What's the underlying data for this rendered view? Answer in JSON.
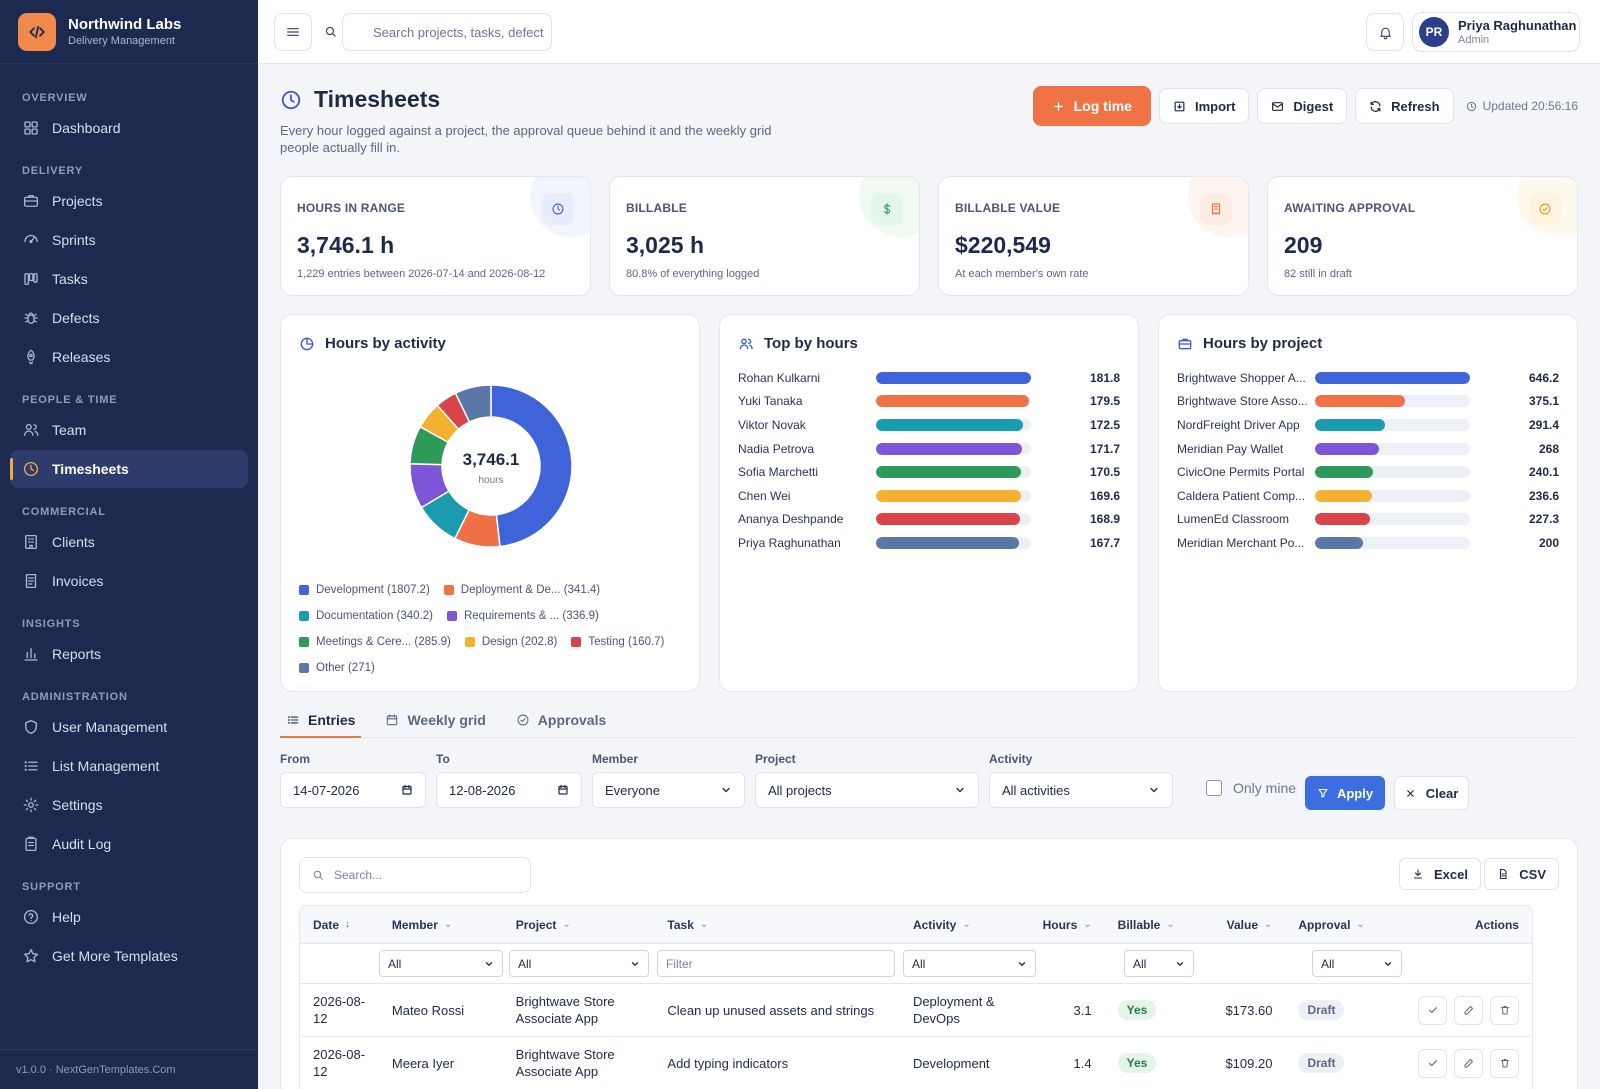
{
  "brand": {
    "name": "Northwind Labs",
    "subtitle": "Delivery Management"
  },
  "nav": {
    "sections": [
      {
        "title": "OVERVIEW",
        "items": [
          {
            "label": "Dashboard",
            "icon": "grid-icon"
          }
        ]
      },
      {
        "title": "DELIVERY",
        "items": [
          {
            "label": "Projects",
            "icon": "briefcase-icon"
          },
          {
            "label": "Sprints",
            "icon": "sprint-icon"
          },
          {
            "label": "Tasks",
            "icon": "kanban-icon"
          },
          {
            "label": "Defects",
            "icon": "bug-icon"
          },
          {
            "label": "Releases",
            "icon": "rocket-icon"
          }
        ]
      },
      {
        "title": "PEOPLE & TIME",
        "items": [
          {
            "label": "Team",
            "icon": "users-icon"
          },
          {
            "label": "Timesheets",
            "icon": "clock-icon",
            "active": true
          }
        ]
      },
      {
        "title": "COMMERCIAL",
        "items": [
          {
            "label": "Clients",
            "icon": "building-icon"
          },
          {
            "label": "Invoices",
            "icon": "invoice-icon"
          }
        ]
      },
      {
        "title": "INSIGHTS",
        "items": [
          {
            "label": "Reports",
            "icon": "bar-chart-icon"
          }
        ]
      },
      {
        "title": "ADMINISTRATION",
        "items": [
          {
            "label": "User Management",
            "icon": "shield-icon"
          },
          {
            "label": "List Management",
            "icon": "list-icon"
          },
          {
            "label": "Settings",
            "icon": "gear-icon"
          },
          {
            "label": "Audit Log",
            "icon": "clipboard-icon"
          }
        ]
      },
      {
        "title": "SUPPORT",
        "items": [
          {
            "label": "Help",
            "icon": "help-icon"
          },
          {
            "label": "Get More Templates",
            "icon": "star-icon"
          }
        ]
      }
    ],
    "footer": "v1.0.0 · NextGenTemplates.Com"
  },
  "topbar": {
    "search_placeholder": "Search projects, tasks, defect",
    "user": {
      "initials": "PR",
      "name": "Priya Raghunathan",
      "role": "Admin"
    }
  },
  "page": {
    "title": "Timesheets",
    "subtitle": "Every hour logged against a project, the approval queue behind it and the weekly grid people actually fill in.",
    "actions": {
      "log_time": "Log time",
      "import": "Import",
      "digest": "Digest",
      "refresh": "Refresh"
    },
    "updated": "Updated 20:56:16"
  },
  "kpis": [
    {
      "label": "HOURS IN RANGE",
      "value": "3,746.1 h",
      "note": "1,229 entries between 2026-07-14 and 2026-08-12",
      "icon": "clock-icon",
      "color": "#3b5bcf",
      "bg": "#e8edfb"
    },
    {
      "label": "BILLABLE",
      "value": "3,025 h",
      "note": "80.8% of everything logged",
      "icon": "dollar-icon",
      "color": "#2b9a5a",
      "bg": "#e4f5ea"
    },
    {
      "label": "BILLABLE VALUE",
      "value": "$220,549",
      "note": "At each member's own rate",
      "icon": "receipt-icon",
      "color": "#e0703e",
      "bg": "#fdece3"
    },
    {
      "label": "AWAITING APPROVAL",
      "value": "209",
      "note": "82 still in draft",
      "icon": "check-circle-icon",
      "color": "#d79a1a",
      "bg": "#fdf4df"
    }
  ],
  "activity_panel": {
    "title": "Hours by activity",
    "center_value": "3,746.1",
    "center_unit": "hours"
  },
  "top_panel": {
    "title": "Top by hours"
  },
  "project_panel": {
    "title": "Hours by project"
  },
  "chart_data": [
    {
      "type": "pie",
      "title": "Hours by activity",
      "donut": true,
      "slices": [
        {
          "label": "Development",
          "legend": "Development (1807.2)",
          "value": 1807.2,
          "color": "#3f63d9"
        },
        {
          "label": "Deployment & DevOps",
          "legend": "Deployment & De... (341.4)",
          "value": 341.4,
          "color": "#ef7146"
        },
        {
          "label": "Documentation",
          "legend": "Documentation (340.2)",
          "value": 340.2,
          "color": "#1a9bb0"
        },
        {
          "label": "Requirements",
          "legend": "Requirements & ... (336.9)",
          "value": 336.9,
          "color": "#7d55d6"
        },
        {
          "label": "Meetings & Ceremonies",
          "legend": "Meetings & Cere... (285.9)",
          "value": 285.9,
          "color": "#2e9a5a"
        },
        {
          "label": "Design",
          "legend": "Design (202.8)",
          "value": 202.8,
          "color": "#f3b12f"
        },
        {
          "label": "Testing",
          "legend": "Testing (160.7)",
          "value": 160.7,
          "color": "#d9444b"
        },
        {
          "label": "Other",
          "legend": "Other (271)",
          "value": 271,
          "color": "#5b77a8"
        }
      ]
    },
    {
      "type": "bar",
      "title": "Top by hours",
      "orientation": "horizontal",
      "xlim": [
        0,
        181.8
      ],
      "items": [
        {
          "label": "Rohan Kulkarni",
          "value": 181.8,
          "display": "181.8",
          "color": "#3f63d9"
        },
        {
          "label": "Yuki Tanaka",
          "value": 179.5,
          "display": "179.5",
          "color": "#ef7146"
        },
        {
          "label": "Viktor Novak",
          "value": 172.5,
          "display": "172.5",
          "color": "#1a9bb0"
        },
        {
          "label": "Nadia Petrova",
          "value": 171.7,
          "display": "171.7",
          "color": "#7d55d6"
        },
        {
          "label": "Sofia Marchetti",
          "value": 170.5,
          "display": "170.5",
          "color": "#2e9a5a"
        },
        {
          "label": "Chen Wei",
          "value": 169.6,
          "display": "169.6",
          "color": "#f3b12f"
        },
        {
          "label": "Ananya Deshpande",
          "value": 168.9,
          "display": "168.9",
          "color": "#d9444b"
        },
        {
          "label": "Priya Raghunathan",
          "value": 167.7,
          "display": "167.7",
          "color": "#5b77a8"
        }
      ]
    },
    {
      "type": "bar",
      "title": "Hours by project",
      "orientation": "horizontal",
      "xlim": [
        0,
        646.2
      ],
      "items": [
        {
          "label": "Brightwave Shopper A...",
          "value": 646.2,
          "display": "646.2",
          "color": "#3f63d9"
        },
        {
          "label": "Brightwave Store Asso...",
          "value": 375.1,
          "display": "375.1",
          "color": "#ef7146"
        },
        {
          "label": "NordFreight Driver App",
          "value": 291.4,
          "display": "291.4",
          "color": "#1a9bb0"
        },
        {
          "label": "Meridian Pay Wallet",
          "value": 268,
          "display": "268",
          "color": "#7d55d6"
        },
        {
          "label": "CivicOne Permits Portal",
          "value": 240.1,
          "display": "240.1",
          "color": "#2e9a5a"
        },
        {
          "label": "Caldera Patient Comp...",
          "value": 236.6,
          "display": "236.6",
          "color": "#f3b12f"
        },
        {
          "label": "LumenEd Classroom",
          "value": 227.3,
          "display": "227.3",
          "color": "#d9444b"
        },
        {
          "label": "Meridian Merchant Po...",
          "value": 200,
          "display": "200",
          "color": "#5b77a8"
        }
      ]
    }
  ],
  "tabs": [
    {
      "label": "Entries",
      "icon": "list-icon",
      "active": true
    },
    {
      "label": "Weekly grid",
      "icon": "calendar-icon"
    },
    {
      "label": "Approvals",
      "icon": "check-circle-icon"
    }
  ],
  "filters": {
    "from_label": "From",
    "from_value": "14-07-2026",
    "to_label": "To",
    "to_value": "12-08-2026",
    "member_label": "Member",
    "member_value": "Everyone",
    "project_label": "Project",
    "project_value": "All projects",
    "activity_label": "Activity",
    "activity_value": "All activities",
    "only_mine": "Only mine",
    "apply": "Apply",
    "clear": "Clear"
  },
  "table": {
    "search_placeholder": "Search...",
    "export_excel": "Excel",
    "export_csv": "CSV",
    "columns": [
      "Date",
      "Member",
      "Project",
      "Task",
      "Activity",
      "Hours",
      "Billable",
      "Value",
      "Approval",
      "Actions"
    ],
    "filter_values": {
      "member": "All",
      "project": "All",
      "task_placeholder": "Filter",
      "activity": "All",
      "billable": "All",
      "approval": "All"
    },
    "rows": [
      {
        "date": "2026-08-12",
        "member": "Mateo Rossi",
        "project": "Brightwave Store Associate App",
        "task": "Clean up unused assets and strings",
        "activity": "Deployment & DevOps",
        "hours": "3.1",
        "billable": "Yes",
        "value": "$173.60",
        "approval": "Draft"
      },
      {
        "date": "2026-08-12",
        "member": "Meera Iyer",
        "project": "Brightwave Store Associate App",
        "task": "Add typing indicators",
        "activity": "Development",
        "hours": "1.4",
        "billable": "Yes",
        "value": "$109.20",
        "approval": "Draft"
      }
    ]
  }
}
